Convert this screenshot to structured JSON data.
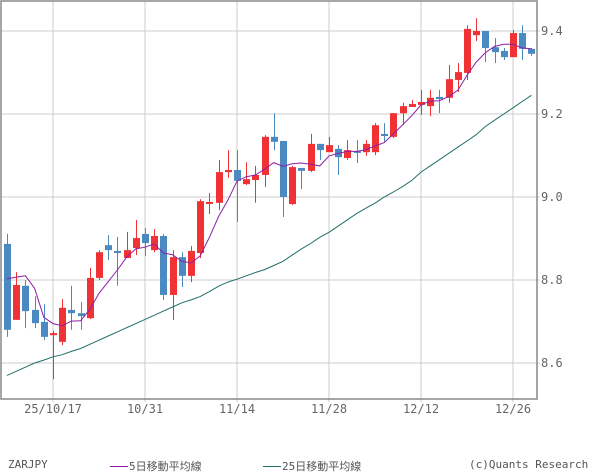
{
  "chart_data": {
    "type": "candlestick",
    "title": "ZARJPY",
    "symbol": "ZARJPY",
    "xlabel": "",
    "ylabel": "",
    "ylim": [
      8.515,
      9.475
    ],
    "yticks": [
      8.6,
      8.8,
      9.0,
      9.2,
      9.4
    ],
    "ytick_labels": [
      "8.6",
      "8.8",
      "9.0",
      "9.2",
      "9.4"
    ],
    "xtick_labels": [
      "25/10/17",
      "10/31",
      "11/14",
      "11/28",
      "12/12",
      "12/26"
    ],
    "xtick_index": [
      5,
      15,
      25,
      35,
      45,
      55
    ],
    "grid": true,
    "legend_position": "bottom",
    "colors": {
      "up": "#f03234",
      "down": "#4a8ac0",
      "ma5": "#8e1ea6",
      "ma25": "#1f6f6a",
      "grid": "#cccccc",
      "frame": "#888888"
    },
    "categories": [
      "10/10",
      "10/13",
      "10/14",
      "10/15",
      "10/16",
      "10/17",
      "10/20",
      "10/21",
      "10/22",
      "10/23",
      "10/24",
      "10/27",
      "10/28",
      "10/29",
      "10/30",
      "10/31",
      "11/03",
      "11/04",
      "11/05",
      "11/06",
      "11/07",
      "11/10",
      "11/11",
      "11/12",
      "11/13",
      "11/14",
      "11/17",
      "11/18",
      "11/19",
      "11/20",
      "11/21",
      "11/24",
      "11/25",
      "11/26",
      "11/27",
      "11/28",
      "12/01",
      "12/02",
      "12/03",
      "12/04",
      "12/05",
      "12/08",
      "12/09",
      "12/10",
      "12/11",
      "12/12",
      "12/15",
      "12/16",
      "12/17",
      "12/18",
      "12/19",
      "12/22",
      "12/23",
      "12/24",
      "12/25",
      "12/26",
      "12/29",
      "12/30"
    ],
    "ohlc": [
      [
        8.887,
        8.911,
        8.663,
        8.68
      ],
      [
        8.704,
        8.819,
        8.704,
        8.788
      ],
      [
        8.786,
        8.8,
        8.684,
        8.725
      ],
      [
        8.728,
        8.761,
        8.684,
        8.696
      ],
      [
        8.699,
        8.742,
        8.655,
        8.663
      ],
      [
        8.667,
        8.677,
        8.561,
        8.672
      ],
      [
        8.651,
        8.754,
        8.643,
        8.733
      ],
      [
        8.728,
        8.786,
        8.68,
        8.72
      ],
      [
        8.72,
        8.747,
        8.68,
        8.713
      ],
      [
        8.708,
        8.829,
        8.706,
        8.805
      ],
      [
        8.805,
        8.872,
        8.8,
        8.867
      ],
      [
        8.884,
        8.908,
        8.848,
        8.872
      ],
      [
        8.87,
        8.904,
        8.786,
        8.865
      ],
      [
        8.853,
        8.916,
        8.858,
        8.872
      ],
      [
        8.877,
        8.945,
        8.86,
        8.901
      ],
      [
        8.911,
        8.925,
        8.858,
        8.889
      ],
      [
        8.872,
        8.923,
        8.867,
        8.906
      ],
      [
        8.906,
        8.911,
        8.752,
        8.764
      ],
      [
        8.764,
        8.872,
        8.704,
        8.855
      ],
      [
        8.855,
        8.867,
        8.783,
        8.81
      ],
      [
        8.81,
        8.882,
        8.795,
        8.87
      ],
      [
        8.865,
        8.995,
        8.853,
        8.99
      ],
      [
        8.986,
        9.01,
        8.959,
        8.988
      ],
      [
        8.986,
        9.089,
        8.969,
        9.06
      ],
      [
        9.06,
        9.113,
        9.046,
        9.065
      ],
      [
        9.065,
        9.113,
        8.94,
        9.039
      ],
      [
        9.031,
        9.084,
        9.029,
        9.043
      ],
      [
        9.041,
        9.075,
        8.986,
        9.053
      ],
      [
        9.053,
        9.149,
        9.024,
        9.145
      ],
      [
        9.145,
        9.202,
        9.113,
        9.133
      ],
      [
        9.135,
        9.135,
        8.952,
        9.0
      ],
      [
        8.983,
        9.075,
        8.981,
        9.072
      ],
      [
        9.07,
        9.07,
        9.019,
        9.063
      ],
      [
        9.063,
        9.152,
        9.06,
        9.128
      ],
      [
        9.128,
        9.128,
        9.089,
        9.113
      ],
      [
        9.108,
        9.145,
        9.108,
        9.125
      ],
      [
        9.116,
        9.125,
        9.053,
        9.096
      ],
      [
        9.094,
        9.137,
        9.089,
        9.113
      ],
      [
        9.111,
        9.137,
        9.082,
        9.108
      ],
      [
        9.108,
        9.137,
        9.099,
        9.128
      ],
      [
        9.108,
        9.178,
        9.101,
        9.173
      ],
      [
        9.152,
        9.178,
        9.133,
        9.147
      ],
      [
        9.145,
        9.202,
        9.142,
        9.202
      ],
      [
        9.202,
        9.227,
        9.173,
        9.219
      ],
      [
        9.217,
        9.234,
        9.217,
        9.224
      ],
      [
        9.222,
        9.258,
        9.198,
        9.229
      ],
      [
        9.219,
        9.258,
        9.195,
        9.239
      ],
      [
        9.241,
        9.258,
        9.202,
        9.236
      ],
      [
        9.239,
        9.318,
        9.227,
        9.284
      ],
      [
        9.282,
        9.323,
        9.253,
        9.301
      ],
      [
        9.299,
        9.414,
        9.282,
        9.405
      ],
      [
        9.39,
        9.431,
        9.376,
        9.4
      ],
      [
        9.4,
        9.4,
        9.325,
        9.359
      ],
      [
        9.361,
        9.383,
        9.323,
        9.349
      ],
      [
        9.352,
        9.359,
        9.33,
        9.337
      ],
      [
        9.337,
        9.402,
        9.337,
        9.395
      ],
      [
        9.395,
        9.414,
        9.33,
        9.357
      ],
      [
        9.357,
        9.359,
        9.34,
        9.345
      ]
    ],
    "series": [
      {
        "name": "5日移動平均線",
        "type": "line",
        "color": "#8e1ea6",
        "values": [
          8.803,
          8.807,
          8.81,
          8.78,
          8.71,
          8.695,
          8.69,
          8.701,
          8.702,
          8.729,
          8.768,
          8.796,
          8.824,
          8.855,
          8.875,
          8.879,
          8.887,
          8.865,
          8.861,
          8.845,
          8.841,
          8.858,
          8.903,
          8.953,
          8.992,
          9.038,
          9.049,
          9.053,
          9.067,
          9.083,
          9.074,
          9.08,
          9.082,
          9.079,
          9.075,
          9.099,
          9.105,
          9.11,
          9.11,
          9.114,
          9.123,
          9.131,
          9.152,
          9.174,
          9.196,
          9.222,
          9.231,
          9.232,
          9.242,
          9.257,
          9.293,
          9.325,
          9.348,
          9.363,
          9.368,
          9.368,
          9.359,
          9.357
        ]
      },
      {
        "name": "25日移動平均線",
        "type": "line",
        "color": "#1f6f6a",
        "values": [
          8.57,
          8.58,
          8.59,
          8.6,
          8.607,
          8.615,
          8.62,
          8.628,
          8.635,
          8.645,
          8.655,
          8.665,
          8.675,
          8.685,
          8.695,
          8.705,
          8.715,
          8.725,
          8.735,
          8.745,
          8.752,
          8.76,
          8.772,
          8.785,
          8.795,
          8.802,
          8.81,
          8.818,
          8.825,
          8.835,
          8.845,
          8.86,
          8.875,
          8.888,
          8.903,
          8.915,
          8.93,
          8.945,
          8.96,
          8.973,
          8.985,
          9.0,
          9.012,
          9.025,
          9.04,
          9.06,
          9.075,
          9.09,
          9.105,
          9.12,
          9.135,
          9.15,
          9.17,
          9.185,
          9.2,
          9.215,
          9.23,
          9.245
        ]
      }
    ]
  },
  "legend": {
    "symbol": "ZARJPY",
    "ma5_label": "5日移動平均線",
    "ma25_label": "25日移動平均線",
    "credit": "(c)Quants Research"
  }
}
